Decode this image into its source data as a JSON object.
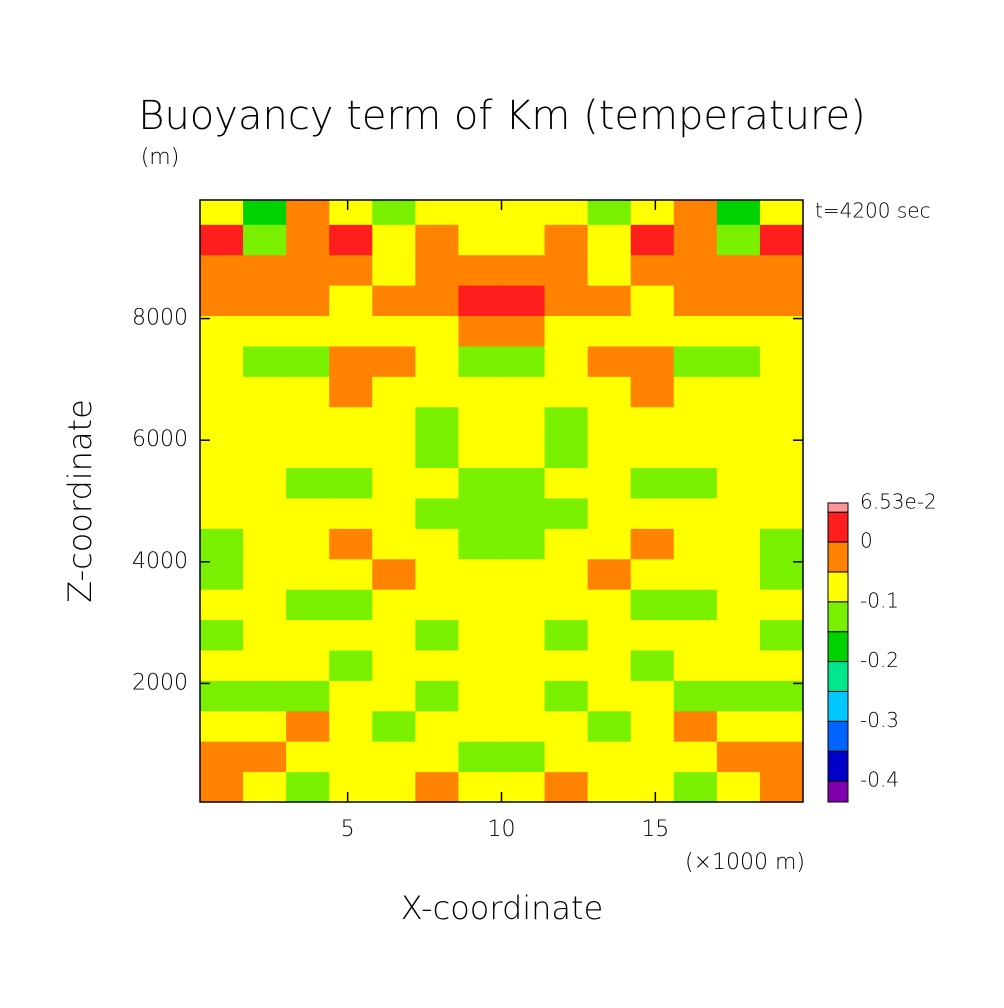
{
  "chart_data": {
    "type": "contour",
    "title": "Buoyancy term of Km (temperature)",
    "y_unit": "(m)",
    "annotation": "t=4200 sec",
    "x_label": "X-coordinate",
    "x_unit": "(×1000 m)",
    "y_label": "Z-coordinate",
    "xlim": [
      0.2,
      19.8
    ],
    "ylim": [
      50,
      9950
    ],
    "xticks": [
      5,
      10,
      15
    ],
    "yticks": [
      2000,
      4000,
      6000,
      8000
    ],
    "xedges": [
      0.2,
      1.6,
      3.0,
      4.4,
      5.8,
      7.2,
      8.6,
      10.0,
      11.4,
      12.8,
      14.2,
      15.6,
      17.0,
      18.4,
      19.8
    ],
    "zedges": [
      50,
      550,
      1050,
      1550,
      2050,
      2550,
      3050,
      3550,
      4050,
      4550,
      5050,
      5550,
      6050,
      6550,
      7050,
      7550,
      8050,
      8550,
      9050,
      9550,
      9950
    ],
    "values": [
      [
        -0.02,
        -0.07,
        -0.12,
        -0.07,
        -0.07,
        -0.02,
        -0.07,
        -0.07,
        -0.02,
        -0.07,
        -0.07,
        -0.12,
        -0.07,
        -0.02
      ],
      [
        -0.02,
        -0.02,
        -0.07,
        -0.07,
        -0.07,
        -0.07,
        -0.12,
        -0.12,
        -0.07,
        -0.07,
        -0.07,
        -0.07,
        -0.02,
        -0.02
      ],
      [
        -0.07,
        -0.07,
        -0.02,
        -0.07,
        -0.12,
        -0.07,
        -0.07,
        -0.07,
        -0.07,
        -0.12,
        -0.07,
        -0.02,
        -0.07,
        -0.07
      ],
      [
        -0.12,
        -0.12,
        -0.12,
        -0.07,
        -0.07,
        -0.12,
        -0.07,
        -0.07,
        -0.12,
        -0.07,
        -0.07,
        -0.12,
        -0.12,
        -0.12
      ],
      [
        -0.07,
        -0.07,
        -0.07,
        -0.12,
        -0.07,
        -0.07,
        -0.07,
        -0.07,
        -0.07,
        -0.07,
        -0.12,
        -0.07,
        -0.07,
        -0.07
      ],
      [
        -0.12,
        -0.07,
        -0.07,
        -0.07,
        -0.07,
        -0.12,
        -0.07,
        -0.07,
        -0.12,
        -0.07,
        -0.07,
        -0.07,
        -0.07,
        -0.12
      ],
      [
        -0.07,
        -0.07,
        -0.12,
        -0.12,
        -0.07,
        -0.07,
        -0.07,
        -0.07,
        -0.07,
        -0.07,
        -0.12,
        -0.12,
        -0.07,
        -0.07
      ],
      [
        -0.12,
        -0.07,
        -0.07,
        -0.07,
        -0.02,
        -0.07,
        -0.07,
        -0.07,
        -0.07,
        -0.02,
        -0.07,
        -0.07,
        -0.07,
        -0.12
      ],
      [
        -0.12,
        -0.07,
        -0.07,
        -0.02,
        -0.07,
        -0.07,
        -0.12,
        -0.12,
        -0.07,
        -0.07,
        -0.02,
        -0.07,
        -0.07,
        -0.12
      ],
      [
        -0.07,
        -0.07,
        -0.07,
        -0.07,
        -0.07,
        -0.12,
        -0.12,
        -0.12,
        -0.12,
        -0.07,
        -0.07,
        -0.07,
        -0.07,
        -0.07
      ],
      [
        -0.07,
        -0.07,
        -0.12,
        -0.12,
        -0.07,
        -0.07,
        -0.12,
        -0.12,
        -0.07,
        -0.07,
        -0.12,
        -0.12,
        -0.07,
        -0.07
      ],
      [
        -0.07,
        -0.07,
        -0.07,
        -0.07,
        -0.07,
        -0.12,
        -0.07,
        -0.07,
        -0.12,
        -0.07,
        -0.07,
        -0.07,
        -0.07,
        -0.07
      ],
      [
        -0.07,
        -0.07,
        -0.07,
        -0.07,
        -0.07,
        -0.12,
        -0.07,
        -0.07,
        -0.12,
        -0.07,
        -0.07,
        -0.07,
        -0.07,
        -0.07
      ],
      [
        -0.07,
        -0.07,
        -0.07,
        -0.02,
        -0.07,
        -0.07,
        -0.07,
        -0.07,
        -0.07,
        -0.07,
        -0.02,
        -0.07,
        -0.07,
        -0.07
      ],
      [
        -0.07,
        -0.12,
        -0.12,
        -0.02,
        -0.02,
        -0.07,
        -0.12,
        -0.12,
        -0.07,
        -0.02,
        -0.02,
        -0.12,
        -0.12,
        -0.07
      ],
      [
        -0.07,
        -0.07,
        -0.07,
        -0.07,
        -0.07,
        -0.07,
        -0.02,
        -0.02,
        -0.07,
        -0.07,
        -0.07,
        -0.07,
        -0.07,
        -0.07
      ],
      [
        -0.02,
        -0.02,
        -0.02,
        -0.07,
        -0.02,
        -0.02,
        0.02,
        0.02,
        -0.02,
        -0.02,
        -0.07,
        -0.02,
        -0.02,
        -0.02
      ],
      [
        -0.02,
        -0.02,
        -0.02,
        -0.02,
        -0.07,
        -0.02,
        -0.02,
        -0.02,
        -0.02,
        -0.07,
        -0.02,
        -0.02,
        -0.02,
        -0.02
      ],
      [
        0.02,
        -0.12,
        -0.02,
        0.02,
        -0.07,
        -0.02,
        -0.07,
        -0.07,
        -0.02,
        -0.07,
        0.02,
        -0.02,
        -0.12,
        0.02
      ],
      [
        -0.07,
        -0.17,
        -0.02,
        -0.07,
        -0.12,
        -0.07,
        -0.07,
        -0.07,
        -0.07,
        -0.12,
        -0.07,
        -0.02,
        -0.17,
        -0.07
      ]
    ],
    "clim": [
      -0.435,
      0.0653
    ],
    "levels": [
      -0.4,
      -0.35,
      -0.3,
      -0.25,
      -0.2,
      -0.15,
      -0.1,
      -0.05,
      0,
      0.05
    ],
    "colors": [
      "#8000b0",
      "#0000c8",
      "#0064ff",
      "#00c8ff",
      "#00e68c",
      "#00d200",
      "#78f000",
      "#ffff00",
      "#ff8200",
      "#ff1e1e",
      "#ff9696"
    ],
    "cticks": [
      {
        "value": 0.0653,
        "label": "6.53e-2"
      },
      0,
      -0.1,
      -0.2,
      -0.3,
      -0.4
    ]
  }
}
